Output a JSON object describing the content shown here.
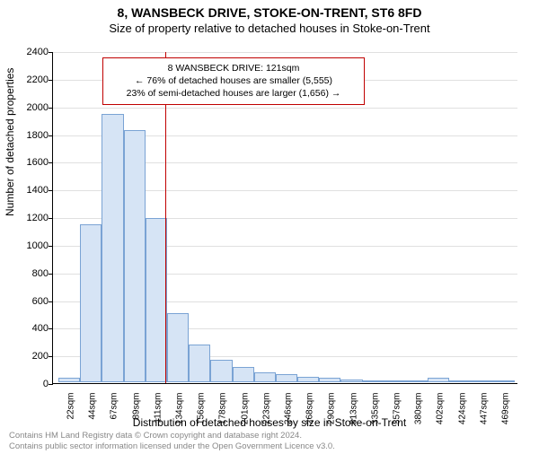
{
  "title": "8, WANSBECK DRIVE, STOKE-ON-TRENT, ST6 8FD",
  "subtitle": "Size of property relative to detached houses in Stoke-on-Trent",
  "chart": {
    "type": "histogram",
    "xlabel": "Distribution of detached houses by size in Stoke-on-Trent",
    "ylabel": "Number of detached properties",
    "ylim": [
      0,
      2400
    ],
    "yticks": [
      0,
      200,
      400,
      600,
      800,
      1000,
      1200,
      1400,
      1600,
      1800,
      2000,
      2200,
      2400
    ],
    "xtick_labels": [
      "22sqm",
      "44sqm",
      "67sqm",
      "89sqm",
      "111sqm",
      "134sqm",
      "156sqm",
      "178sqm",
      "201sqm",
      "223sqm",
      "246sqm",
      "268sqm",
      "290sqm",
      "313sqm",
      "335sqm",
      "357sqm",
      "380sqm",
      "402sqm",
      "424sqm",
      "447sqm",
      "469sqm"
    ],
    "values": [
      30,
      1140,
      1940,
      1820,
      1190,
      500,
      270,
      160,
      110,
      70,
      60,
      40,
      30,
      20,
      10,
      10,
      10,
      30,
      5,
      5,
      5
    ],
    "bar_color": "#d6e4f5",
    "bar_border_color": "#7aa3d4",
    "background_color": "#ffffff",
    "grid_color": "#e0e0e0",
    "reference_line_color": "#c00000",
    "reference_line_value": 121,
    "bar_width_ratio": 1.0,
    "title_fontsize": 14,
    "subtitle_fontsize": 13,
    "label_fontsize": 12,
    "tick_fontsize": 11
  },
  "annotation": {
    "line1": "8 WANSBECK DRIVE: 121sqm",
    "line2": "← 76% of detached houses are smaller (5,555)",
    "line3": "23% of semi-detached houses are larger (1,656) →",
    "border_color": "#c00000"
  },
  "footer": {
    "line1": "Contains HM Land Registry data © Crown copyright and database right 2024.",
    "line2": "Contains public sector information licensed under the Open Government Licence v3.0."
  }
}
